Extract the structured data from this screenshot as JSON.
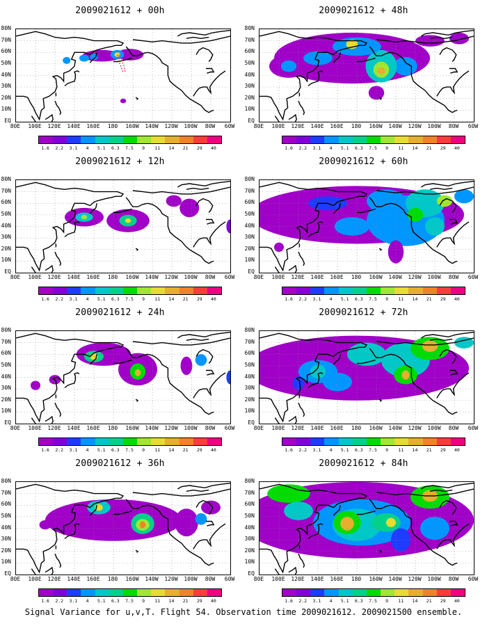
{
  "panels": [
    {
      "title": "2009021612 + 00h",
      "lead": 0
    },
    {
      "title": "2009021612 + 48h",
      "lead": 48
    },
    {
      "title": "2009021612 + 12h",
      "lead": 12
    },
    {
      "title": "2009021612 + 60h",
      "lead": 60
    },
    {
      "title": "2009021612 + 24h",
      "lead": 24
    },
    {
      "title": "2009021612 + 72h",
      "lead": 72
    },
    {
      "title": "2009021612 + 36h",
      "lead": 36
    },
    {
      "title": "2009021612 + 84h",
      "lead": 84
    }
  ],
  "lat_labels": [
    "80N",
    "70N",
    "60N",
    "50N",
    "40N",
    "30N",
    "20N",
    "10N",
    "EQ"
  ],
  "lon_labels": [
    "80E",
    "100E",
    "120E",
    "140E",
    "160E",
    "180",
    "160W",
    "140W",
    "120W",
    "100W",
    "80W",
    "60W"
  ],
  "colorbar": {
    "labels": [
      "1.6",
      "2.2",
      "3.1",
      "4",
      "5.1",
      "6.3",
      "7.5",
      "9",
      "11",
      "14",
      "21",
      "29",
      "40"
    ],
    "colors": [
      "#a000c8",
      "#8200dc",
      "#1e3cff",
      "#0096ff",
      "#00c8c8",
      "#00d28c",
      "#00dc00",
      "#a0e632",
      "#e6dc32",
      "#e6af2d",
      "#f08228",
      "#fa3c3c",
      "#f00082"
    ]
  },
  "footer": "Signal Variance for u,v,T. Flight 54. Observation time 2009021612. 2009021500 ensemble."
}
